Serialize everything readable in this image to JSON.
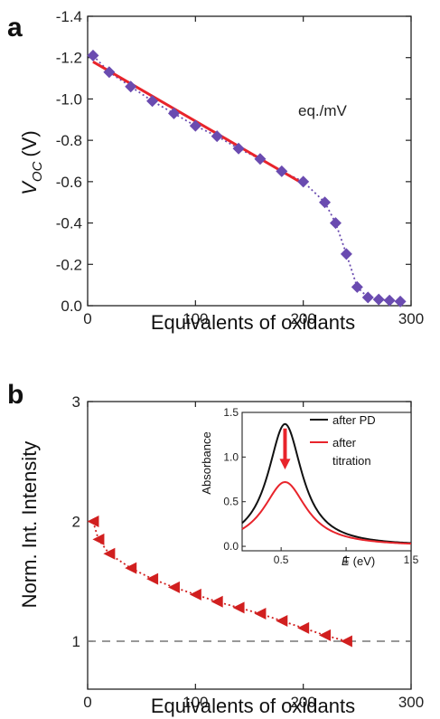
{
  "panel_a": {
    "label": "a",
    "annotation": "eq./mV",
    "xlabel": "Equivalents of oxidants",
    "ylabel_main": "V",
    "ylabel_sub": "OC",
    "ylabel_unit": "(V)",
    "xticks": [
      "0",
      "100",
      "200",
      "300"
    ],
    "yticks": [
      "0.0",
      "-0.2",
      "-0.4",
      "-0.6",
      "-0.8",
      "-1.0",
      "-1.2",
      "-1.4"
    ]
  },
  "panel_b": {
    "label": "b",
    "xlabel": "Equivalents of oxidants",
    "ylabel": "Norm. Int. Intensity",
    "xticks": [
      "0",
      "100",
      "200",
      "300"
    ],
    "yticks": [
      "1",
      "2",
      "3"
    ],
    "inset": {
      "ylabel": "Absorbance",
      "xlabel_main": "E",
      "xlabel_unit": "(eV)",
      "xticks": [
        "0.5",
        "1",
        "1.5"
      ],
      "yticks": [
        "0.0",
        "0.5",
        "1.0",
        "1.5"
      ],
      "legend": [
        "after PD",
        "after",
        "titration"
      ]
    }
  },
  "chart_data": [
    {
      "type": "scatter",
      "title": "",
      "xlabel": "Equivalents of oxidants",
      "ylabel": "V_OC (V)",
      "xlim": [
        0,
        300
      ],
      "ylim": [
        0.0,
        -1.4
      ],
      "marker_color": "#6a4bb0",
      "fit_color": "#e8242b",
      "series": [
        {
          "x": [
            5,
            20,
            40,
            60,
            80,
            100,
            120,
            140,
            160,
            180,
            200,
            220,
            230,
            240,
            250,
            260,
            270,
            280,
            290
          ],
          "values": [
            -1.21,
            -1.13,
            -1.06,
            -0.99,
            -0.93,
            -0.87,
            -0.82,
            -0.76,
            -0.71,
            -0.65,
            -0.6,
            -0.5,
            -0.4,
            -0.25,
            -0.09,
            -0.04,
            -0.03,
            -0.025,
            -0.02
          ]
        }
      ],
      "fit_line": {
        "x": [
          5,
          200
        ],
        "values": [
          -1.18,
          -0.59
        ]
      }
    },
    {
      "type": "scatter",
      "title": "",
      "xlabel": "Equivalents of oxidants",
      "ylabel": "Norm. Int. Intensity",
      "xlim": [
        0,
        300
      ],
      "ylim": [
        0.6,
        3
      ],
      "marker_color": "#d11f1f",
      "reference_line": 1,
      "series": [
        {
          "x": [
            5,
            10,
            20,
            40,
            60,
            80,
            100,
            120,
            140,
            160,
            180,
            200,
            220,
            240
          ],
          "values": [
            2.0,
            1.85,
            1.73,
            1.61,
            1.52,
            1.45,
            1.39,
            1.33,
            1.28,
            1.23,
            1.17,
            1.11,
            1.05,
            1.0
          ]
        }
      ]
    },
    {
      "type": "line",
      "title": "",
      "xlabel": "E (eV)",
      "ylabel": "Absorbance",
      "xlim": [
        0.2,
        1.5
      ],
      "ylim": [
        -0.05,
        1.5
      ],
      "series": [
        {
          "name": "after PD",
          "color": "#111111",
          "peak": 1.37,
          "x0": 0.53,
          "gamma": 0.16,
          "offset": 0.0
        },
        {
          "name": "after titration",
          "color": "#e8242b",
          "peak": 0.72,
          "x0": 0.53,
          "gamma": 0.2,
          "offset": 0.0
        }
      ]
    }
  ]
}
